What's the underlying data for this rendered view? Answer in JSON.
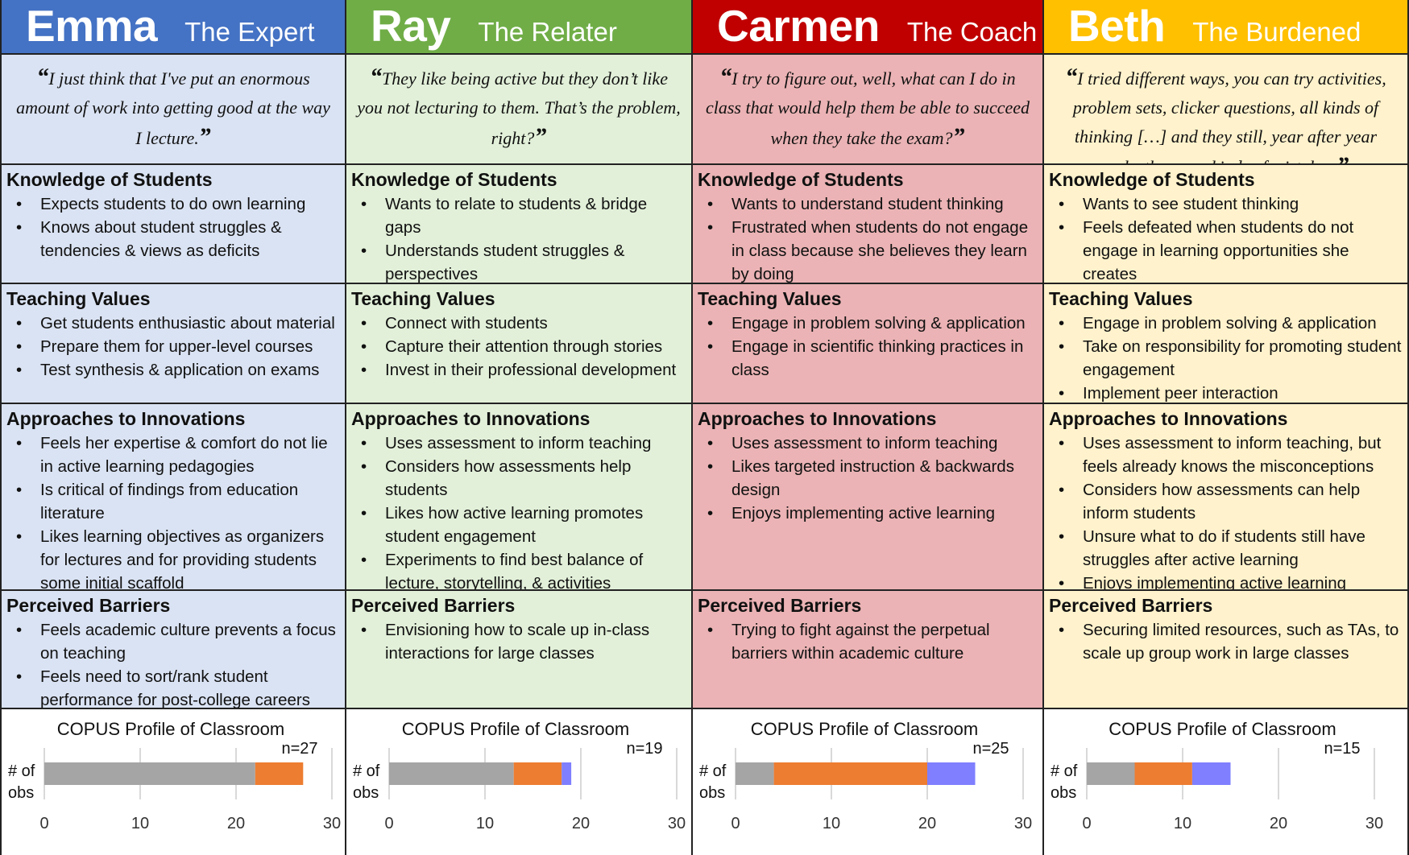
{
  "colors": {
    "gray_segment": "#a5a5a5",
    "orange_segment": "#ed7d31",
    "blue_segment": "#7f7fff",
    "gridline": "#d9d9d9"
  },
  "personas": [
    {
      "id": "emma",
      "name": "Emma",
      "role": "The Expert",
      "header_color": "#4472c4",
      "body_color": "#dae3f3",
      "quote": "I just think that I've put an enormous amount of work into getting good at the way I lecture.",
      "sections": [
        {
          "title": "Knowledge of Students",
          "items": [
            "Expects students to do own learning",
            "Knows about student struggles & tendencies & views as deficits"
          ]
        },
        {
          "title": "Teaching Values",
          "items": [
            "Get students enthusiastic about material",
            "Prepare them for upper-level courses",
            "Test synthesis & application on exams"
          ]
        },
        {
          "title": "Approaches to Innovations",
          "items": [
            "Feels her expertise & comfort do not lie in active learning pedagogies",
            "Is critical of findings from education literature",
            "Likes learning objectives as organizers for lectures and for providing students some initial scaffold"
          ]
        },
        {
          "title": "Perceived Barriers",
          "items": [
            "Feels academic culture prevents a focus on teaching",
            "Feels need to sort/rank student performance for post-college careers"
          ]
        }
      ],
      "chart": {
        "title": "COPUS Profile of Classroom",
        "n_label": "n=27",
        "ylabel_line1": "# of",
        "ylabel_line2": "obs",
        "segments": [
          22,
          5,
          0
        ],
        "xlim": [
          0,
          30
        ],
        "ticks": [
          "0",
          "10",
          "20",
          "30"
        ]
      }
    },
    {
      "id": "ray",
      "name": "Ray",
      "role": "The Relater",
      "header_color": "#70ad47",
      "body_color": "#e2f0d9",
      "quote": "They like being active but they don’t like you not lecturing to them. That’s the problem, right?",
      "sections": [
        {
          "title": "Knowledge of Students",
          "items": [
            "Wants to relate to students & bridge gaps",
            "Understands student struggles & perspectives"
          ]
        },
        {
          "title": "Teaching Values",
          "items": [
            "Connect with students",
            "Capture their attention through stories",
            "Invest in their professional development"
          ]
        },
        {
          "title": "Approaches to Innovations",
          "items": [
            "Uses assessment to inform teaching",
            "Considers how assessments help students",
            "Likes how active learning promotes student engagement",
            "Experiments to find best balance of lecture, storytelling, & activities"
          ]
        },
        {
          "title": "Perceived Barriers",
          "items": [
            "Envisioning how to scale up in-class interactions for large classes"
          ]
        }
      ],
      "chart": {
        "title": "COPUS Profile of Classroom",
        "n_label": "n=19",
        "ylabel_line1": "# of",
        "ylabel_line2": "obs",
        "segments": [
          13,
          5,
          1
        ],
        "xlim": [
          0,
          30
        ],
        "ticks": [
          "0",
          "10",
          "20",
          "30"
        ]
      }
    },
    {
      "id": "carmen",
      "name": "Carmen",
      "role": "The Coach",
      "header_color": "#c00000",
      "body_color": "#ebb3b5",
      "quote": "I try to figure out, well, what can I do in class that would help them be able to succeed when they take the exam?",
      "sections": [
        {
          "title": "Knowledge of Students",
          "items": [
            "Wants to understand student thinking",
            "Frustrated when students do not engage in class because she believes they learn by doing"
          ]
        },
        {
          "title": "Teaching Values",
          "items": [
            "Engage in problem solving & application",
            "Engage in scientific thinking practices in class"
          ]
        },
        {
          "title": "Approaches to Innovations",
          "items": [
            "Uses assessment to inform teaching",
            "Likes targeted instruction & backwards design",
            "Enjoys implementing active learning"
          ]
        },
        {
          "title": "Perceived Barriers",
          "items": [
            "Trying to fight against the perpetual barriers within academic culture"
          ]
        }
      ],
      "chart": {
        "title": "COPUS Profile of Classroom",
        "n_label": "n=25",
        "ylabel_line1": "# of",
        "ylabel_line2": "obs",
        "segments": [
          4,
          16,
          5
        ],
        "xlim": [
          0,
          30
        ],
        "ticks": [
          "0",
          "10",
          "20",
          "30"
        ]
      }
    },
    {
      "id": "beth",
      "name": "Beth",
      "role": "The Burdened",
      "header_color": "#ffc000",
      "body_color": "#fff2cc",
      "quote": "I tried different ways, you can try activities, problem sets, clicker questions, all kinds of thinking […] and they still, year after year make the same kinds of mistakes.",
      "sections": [
        {
          "title": "Knowledge of Students",
          "items": [
            "Wants to see student thinking",
            "Feels defeated when students do not engage in learning opportunities she creates"
          ]
        },
        {
          "title": "Teaching Values",
          "items": [
            "Engage in problem solving & application",
            "Take on responsibility for promoting student engagement",
            "Implement peer interaction"
          ]
        },
        {
          "title": "Approaches to Innovations",
          "items": [
            "Uses assessment to inform teaching, but feels already knows the misconceptions",
            "Considers how assessments can help inform students",
            "Unsure what to do if students still have struggles after active learning",
            "Enjoys implementing active learning"
          ]
        },
        {
          "title": "Perceived Barriers",
          "items": [
            "Securing limited resources, such as TAs, to scale up group work in large classes"
          ]
        }
      ],
      "chart": {
        "title": "COPUS Profile of Classroom",
        "n_label": "n=15",
        "ylabel_line1": "# of",
        "ylabel_line2": "obs",
        "segments": [
          5,
          6,
          4
        ],
        "xlim": [
          0,
          30
        ],
        "ticks": [
          "0",
          "10",
          "20",
          "30"
        ]
      }
    }
  ],
  "chart_data": [
    {
      "type": "bar",
      "orientation": "horizontal",
      "stacked": true,
      "title": "COPUS Profile of Classroom",
      "ylabel": "# of obs",
      "annotation": "n=27",
      "xlim": [
        0,
        30
      ],
      "x_ticks": [
        0,
        10,
        20,
        30
      ],
      "grid": true,
      "series": [
        {
          "values": [
            22
          ]
        },
        {
          "values": [
            5
          ]
        },
        {
          "values": [
            0
          ]
        }
      ]
    },
    {
      "type": "bar",
      "orientation": "horizontal",
      "stacked": true,
      "title": "COPUS Profile of Classroom",
      "ylabel": "# of obs",
      "annotation": "n=19",
      "xlim": [
        0,
        30
      ],
      "x_ticks": [
        0,
        10,
        20,
        30
      ],
      "grid": true,
      "series": [
        {
          "values": [
            13
          ]
        },
        {
          "values": [
            5
          ]
        },
        {
          "values": [
            1
          ]
        }
      ]
    },
    {
      "type": "bar",
      "orientation": "horizontal",
      "stacked": true,
      "title": "COPUS Profile of Classroom",
      "ylabel": "# of obs",
      "annotation": "n=25",
      "xlim": [
        0,
        30
      ],
      "x_ticks": [
        0,
        10,
        20,
        30
      ],
      "grid": true,
      "series": [
        {
          "values": [
            4
          ]
        },
        {
          "values": [
            16
          ]
        },
        {
          "values": [
            5
          ]
        }
      ]
    },
    {
      "type": "bar",
      "orientation": "horizontal",
      "stacked": true,
      "title": "COPUS Profile of Classroom",
      "ylabel": "# of obs",
      "annotation": "n=15",
      "xlim": [
        0,
        30
      ],
      "x_ticks": [
        0,
        10,
        20,
        30
      ],
      "grid": true,
      "series": [
        {
          "values": [
            5
          ]
        },
        {
          "values": [
            6
          ]
        },
        {
          "values": [
            4
          ]
        }
      ]
    }
  ]
}
